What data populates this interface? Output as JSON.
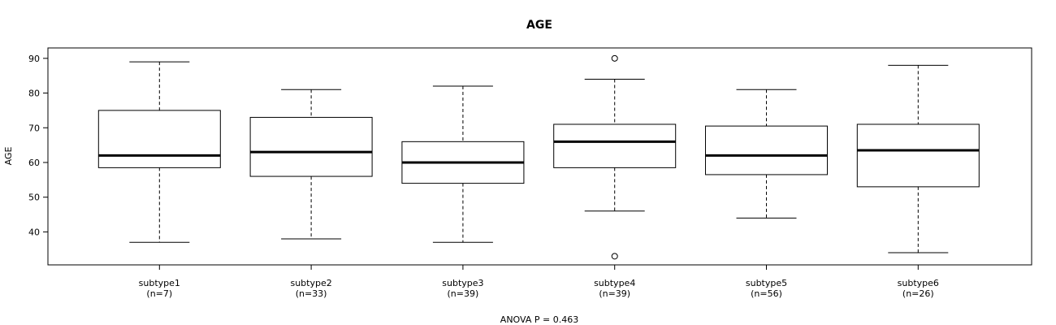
{
  "chart_data": {
    "type": "boxplot",
    "title": "AGE",
    "ylabel": "AGE",
    "footnote": "ANOVA P = 0.463",
    "ylim": [
      30.5,
      93.0
    ],
    "yticks": [
      40,
      50,
      60,
      70,
      80,
      90
    ],
    "grid": false,
    "groups": [
      {
        "label": "subtype1",
        "n_label": "(n=7)",
        "min": 37,
        "q1": 58.5,
        "median": 62,
        "q3": 75,
        "max": 89,
        "outliers": []
      },
      {
        "label": "subtype2",
        "n_label": "(n=33)",
        "min": 38,
        "q1": 56,
        "median": 63,
        "q3": 73,
        "max": 81,
        "outliers": []
      },
      {
        "label": "subtype3",
        "n_label": "(n=39)",
        "min": 37,
        "q1": 54,
        "median": 60,
        "q3": 66,
        "max": 82,
        "outliers": []
      },
      {
        "label": "subtype4",
        "n_label": "(n=39)",
        "min": 46,
        "q1": 58.5,
        "median": 66,
        "q3": 71,
        "max": 84,
        "outliers": [
          90,
          33
        ]
      },
      {
        "label": "subtype5",
        "n_label": "(n=56)",
        "min": 44,
        "q1": 56.5,
        "median": 62,
        "q3": 70.5,
        "max": 81,
        "outliers": []
      },
      {
        "label": "subtype6",
        "n_label": "(n=26)",
        "min": 34,
        "q1": 53,
        "median": 63.5,
        "q3": 71,
        "max": 88,
        "outliers": []
      }
    ]
  }
}
